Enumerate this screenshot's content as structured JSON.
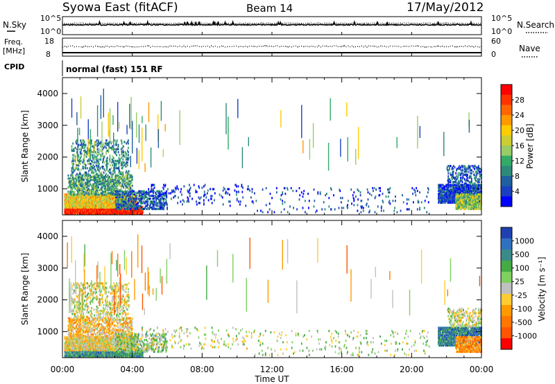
{
  "header": {
    "station": "Syowa East (fitACF)",
    "beam": "Beam 14",
    "date": "17/May/2012"
  },
  "sky_panel": {
    "left_label": "N.Sky",
    "left_ticks": [
      "10^5",
      "10^0"
    ],
    "right_ticks": [
      "10^5",
      "10^0"
    ],
    "right_label": "N.Search"
  },
  "freq_panel": {
    "left_label_1": "Freq.",
    "left_label_2": "[MHz]",
    "left_ticks": [
      "18",
      "8"
    ],
    "right_ticks": [
      "60",
      "0"
    ],
    "right_label": "Nave",
    "cpid_label": "CPID",
    "cpid_value": "normal (fast) 151 RF"
  },
  "chart_data": [
    {
      "type": "heatmap",
      "name": "power",
      "ylabel": "Slant Range [km]",
      "ylim": [
        180,
        4500
      ],
      "yticks": [
        "1000",
        "2000",
        "3000",
        "4000"
      ],
      "xlim_hours": [
        0,
        24
      ],
      "xticks": [
        "00:00",
        "04:00",
        "08:00",
        "12:00",
        "16:00",
        "20:00",
        "00:00"
      ],
      "colorbar": {
        "label": "Power [dB]",
        "ticks": [
          "28",
          "24",
          "20",
          "16",
          "12",
          "8",
          "4"
        ],
        "colors": [
          "#ff0000",
          "#ff3300",
          "#ff6600",
          "#ff9900",
          "#ffcc00",
          "#cccc33",
          "#99cc66",
          "#33aa66",
          "#2d8a7a",
          "#2060a0",
          "#1a40c0",
          "#0000ff"
        ]
      },
      "regions": [
        {
          "t": [
            0.1,
            4.6
          ],
          "r": [
            250,
            500
          ],
          "level": 0.92,
          "density": 0.9
        },
        {
          "t": [
            0.1,
            4.3
          ],
          "r": [
            450,
            900
          ],
          "level": 0.6,
          "density": 0.75
        },
        {
          "t": [
            0.3,
            4.0
          ],
          "r": [
            850,
            1500
          ],
          "level": 0.35,
          "density": 0.45
        },
        {
          "t": [
            0.5,
            3.8
          ],
          "r": [
            1500,
            2600
          ],
          "level": 0.3,
          "density": 0.2
        },
        {
          "t": [
            3.0,
            6.0
          ],
          "r": [
            400,
            1000
          ],
          "level": 0.2,
          "density": 0.35
        },
        {
          "t": [
            4.5,
            11.0
          ],
          "r": [
            500,
            1200
          ],
          "level": 0.1,
          "density": 0.05
        },
        {
          "t": [
            11.0,
            21.0
          ],
          "r": [
            300,
            1100
          ],
          "level": 0.15,
          "density": 0.03
        },
        {
          "t": [
            21.5,
            24.0
          ],
          "r": [
            600,
            1200
          ],
          "level": 0.15,
          "density": 0.7
        },
        {
          "t": [
            22.5,
            24.0
          ],
          "r": [
            400,
            900
          ],
          "level": 0.45,
          "density": 0.7
        },
        {
          "t": [
            22.0,
            24.0
          ],
          "r": [
            1200,
            1800
          ],
          "level": 0.2,
          "density": 0.25
        }
      ]
    },
    {
      "type": "heatmap",
      "name": "velocity",
      "ylabel": "Slant Range [km]",
      "ylim": [
        180,
        4500
      ],
      "yticks": [
        "1000",
        "2000",
        "3000",
        "4000"
      ],
      "xlim_hours": [
        0,
        24
      ],
      "xticks": [
        "00:00",
        "04:00",
        "08:00",
        "12:00",
        "16:00",
        "20:00",
        "00:00"
      ],
      "xlabel": "Time UT",
      "colorbar": {
        "label": "Velocity [m s⁻¹]",
        "ticks": [
          "1000",
          "500",
          "100",
          "25",
          "-25",
          "-100",
          "-500",
          "-1000"
        ],
        "colors": [
          "#2040b0",
          "#3070c0",
          "#3a8a8a",
          "#44aa44",
          "#80d060",
          "#c0c0c0",
          "#ffcc33",
          "#ff9900",
          "#ff7700",
          "#ff5500",
          "#ff0000"
        ]
      },
      "regions": [
        {
          "t": [
            0.1,
            4.6
          ],
          "r": [
            250,
            500
          ],
          "level": 0.75,
          "density": 0.85
        },
        {
          "t": [
            0.1,
            4.3
          ],
          "r": [
            450,
            900
          ],
          "level": 0.45,
          "density": 0.7
        },
        {
          "t": [
            0.3,
            4.0
          ],
          "r": [
            850,
            1500
          ],
          "level": 0.4,
          "density": 0.4
        },
        {
          "t": [
            0.5,
            3.8
          ],
          "r": [
            1500,
            2600
          ],
          "level": 0.5,
          "density": 0.2
        },
        {
          "t": [
            3.0,
            6.0
          ],
          "r": [
            400,
            1000
          ],
          "level": 0.6,
          "density": 0.3
        },
        {
          "t": [
            4.5,
            11.0
          ],
          "r": [
            500,
            1200
          ],
          "level": 0.5,
          "density": 0.05
        },
        {
          "t": [
            11.0,
            21.0
          ],
          "r": [
            300,
            1100
          ],
          "level": 0.55,
          "density": 0.03
        },
        {
          "t": [
            21.5,
            24.0
          ],
          "r": [
            600,
            1200
          ],
          "level": 0.8,
          "density": 0.7
        },
        {
          "t": [
            22.5,
            24.0
          ],
          "r": [
            400,
            900
          ],
          "level": 0.3,
          "density": 0.7
        },
        {
          "t": [
            22.0,
            24.0
          ],
          "r": [
            1200,
            1800
          ],
          "level": 0.5,
          "density": 0.25
        }
      ]
    }
  ]
}
